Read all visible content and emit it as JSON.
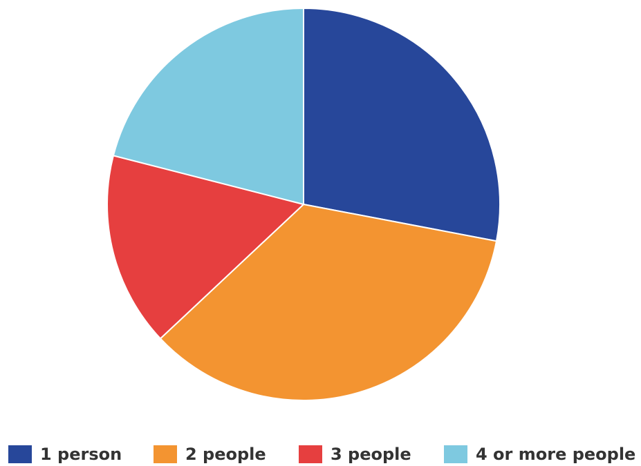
{
  "chart_data": {
    "type": "pie",
    "categories": [
      "1 person",
      "2 people",
      "3 people",
      "4 or more people"
    ],
    "values": [
      28,
      35,
      16,
      21
    ],
    "colors": [
      "#27479a",
      "#f39431",
      "#e63f3f",
      "#7ec9e0"
    ],
    "legend": "bottom"
  }
}
